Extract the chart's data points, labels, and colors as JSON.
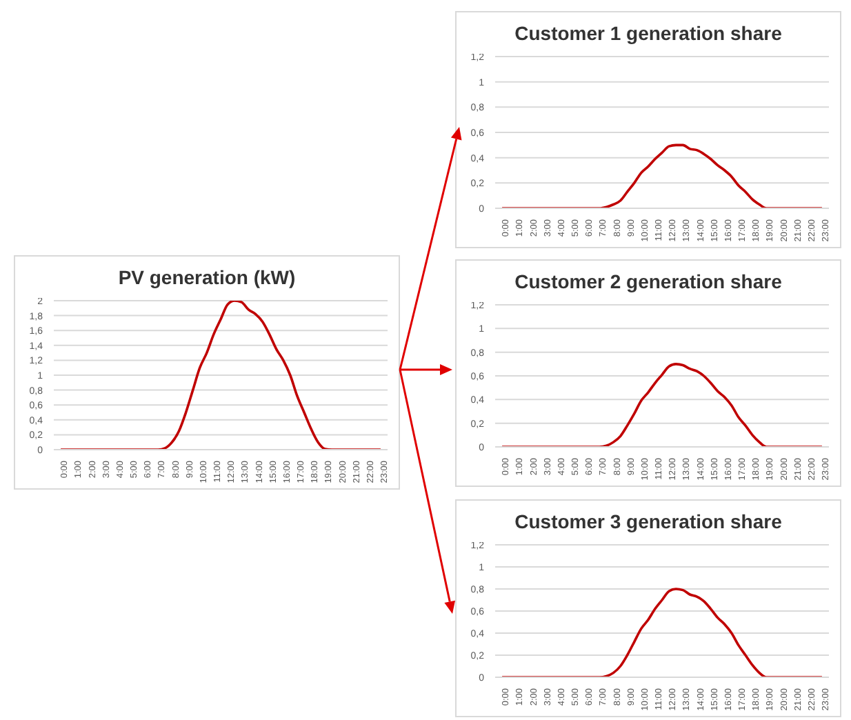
{
  "chart_data": [
    {
      "type": "line",
      "title": "PV generation (kW)",
      "color": "#c00000",
      "grid": "y",
      "xlim": [
        -0.5,
        23.5
      ],
      "ylim": [
        0,
        2
      ],
      "xticks": [
        {
          "value": 0,
          "label": "0:00"
        },
        {
          "value": 1,
          "label": "1:00"
        },
        {
          "value": 2,
          "label": "2:00"
        },
        {
          "value": 3,
          "label": "3:00"
        },
        {
          "value": 4,
          "label": "4:00"
        },
        {
          "value": 5,
          "label": "5:00"
        },
        {
          "value": 6,
          "label": "6:00"
        },
        {
          "value": 7,
          "label": "7:00"
        },
        {
          "value": 8,
          "label": "8:00"
        },
        {
          "value": 9,
          "label": "9:00"
        },
        {
          "value": 10,
          "label": "10:00"
        },
        {
          "value": 11,
          "label": "11:00"
        },
        {
          "value": 12,
          "label": "12:00"
        },
        {
          "value": 13,
          "label": "13:00"
        },
        {
          "value": 14,
          "label": "14:00"
        },
        {
          "value": 15,
          "label": "15:00"
        },
        {
          "value": 16,
          "label": "16:00"
        },
        {
          "value": 17,
          "label": "17:00"
        },
        {
          "value": 18,
          "label": "18:00"
        },
        {
          "value": 19,
          "label": "19:00"
        },
        {
          "value": 20,
          "label": "20:00"
        },
        {
          "value": 21,
          "label": "21:00"
        },
        {
          "value": 22,
          "label": "22:00"
        },
        {
          "value": 23,
          "label": "23:00"
        }
      ],
      "yticks": [
        0,
        {
          "value": 0.2,
          "label": "0,2"
        },
        {
          "value": 0.4,
          "label": "0,4"
        },
        {
          "value": 0.6,
          "label": "0,6"
        },
        {
          "value": 0.8,
          "label": "0,8"
        },
        1,
        {
          "value": 1.2,
          "label": "1,2"
        },
        {
          "value": 1.4,
          "label": "1,4"
        },
        {
          "value": 1.6,
          "label": "1,6"
        },
        {
          "value": 1.8,
          "label": "1,8"
        },
        2
      ],
      "x": [
        0,
        7,
        7.5,
        8,
        8.5,
        9,
        9.5,
        10,
        10.5,
        11,
        11.5,
        12,
        12.5,
        13,
        13.5,
        14,
        14.5,
        15,
        15.5,
        16,
        16.5,
        17,
        17.5,
        18,
        18.5,
        19,
        19.5,
        23
      ],
      "values": [
        0,
        0,
        0.02,
        0.1,
        0.25,
        0.5,
        0.8,
        1.1,
        1.3,
        1.55,
        1.75,
        1.95,
        2,
        1.98,
        1.88,
        1.82,
        1.72,
        1.55,
        1.35,
        1.2,
        1,
        0.72,
        0.5,
        0.28,
        0.1,
        0.01,
        0,
        0
      ]
    },
    {
      "type": "line",
      "title": "Customer 1 generation share",
      "color": "#c00000",
      "grid": "y",
      "xlim": [
        -0.5,
        23.5
      ],
      "ylim": [
        0,
        1.2
      ],
      "xticks": [
        {
          "value": 0,
          "label": "0:00"
        },
        {
          "value": 1,
          "label": "1:00"
        },
        {
          "value": 2,
          "label": "2:00"
        },
        {
          "value": 3,
          "label": "3:00"
        },
        {
          "value": 4,
          "label": "4:00"
        },
        {
          "value": 5,
          "label": "5:00"
        },
        {
          "value": 6,
          "label": "6:00"
        },
        {
          "value": 7,
          "label": "7:00"
        },
        {
          "value": 8,
          "label": "8:00"
        },
        {
          "value": 9,
          "label": "9:00"
        },
        {
          "value": 10,
          "label": "10:00"
        },
        {
          "value": 11,
          "label": "11:00"
        },
        {
          "value": 12,
          "label": "12:00"
        },
        {
          "value": 13,
          "label": "13:00"
        },
        {
          "value": 14,
          "label": "14:00"
        },
        {
          "value": 15,
          "label": "15:00"
        },
        {
          "value": 16,
          "label": "16:00"
        },
        {
          "value": 17,
          "label": "17:00"
        },
        {
          "value": 18,
          "label": "18:00"
        },
        {
          "value": 19,
          "label": "19:00"
        },
        {
          "value": 20,
          "label": "20:00"
        },
        {
          "value": 21,
          "label": "21:00"
        },
        {
          "value": 22,
          "label": "22:00"
        },
        {
          "value": 23,
          "label": "23:00"
        }
      ],
      "yticks": [
        0,
        {
          "value": 0.2,
          "label": "0,2"
        },
        {
          "value": 0.4,
          "label": "0,4"
        },
        {
          "value": 0.6,
          "label": "0,6"
        },
        {
          "value": 0.8,
          "label": "0,8"
        },
        1,
        {
          "value": 1.2,
          "label": "1,2"
        }
      ],
      "x": [
        0,
        7,
        7.5,
        8,
        8.5,
        9,
        9.5,
        10,
        10.5,
        11,
        11.5,
        12,
        12.5,
        13,
        13.5,
        14,
        14.5,
        15,
        15.5,
        16,
        16.5,
        17,
        17.5,
        18,
        18.5,
        19,
        19.5,
        23
      ],
      "values": [
        0,
        0,
        0.01,
        0.03,
        0.06,
        0.13,
        0.2,
        0.28,
        0.33,
        0.39,
        0.44,
        0.49,
        0.5,
        0.5,
        0.47,
        0.46,
        0.43,
        0.39,
        0.34,
        0.3,
        0.25,
        0.18,
        0.13,
        0.07,
        0.03,
        0,
        0,
        0
      ]
    },
    {
      "type": "line",
      "title": "Customer 2 generation share",
      "color": "#c00000",
      "grid": "y",
      "xlim": [
        -0.5,
        23.5
      ],
      "ylim": [
        0,
        1.2
      ],
      "xticks": [
        {
          "value": 0,
          "label": "0:00"
        },
        {
          "value": 1,
          "label": "1:00"
        },
        {
          "value": 2,
          "label": "2:00"
        },
        {
          "value": 3,
          "label": "3:00"
        },
        {
          "value": 4,
          "label": "4:00"
        },
        {
          "value": 5,
          "label": "5:00"
        },
        {
          "value": 6,
          "label": "6:00"
        },
        {
          "value": 7,
          "label": "7:00"
        },
        {
          "value": 8,
          "label": "8:00"
        },
        {
          "value": 9,
          "label": "9:00"
        },
        {
          "value": 10,
          "label": "10:00"
        },
        {
          "value": 11,
          "label": "11:00"
        },
        {
          "value": 12,
          "label": "12:00"
        },
        {
          "value": 13,
          "label": "13:00"
        },
        {
          "value": 14,
          "label": "14:00"
        },
        {
          "value": 15,
          "label": "15:00"
        },
        {
          "value": 16,
          "label": "16:00"
        },
        {
          "value": 17,
          "label": "17:00"
        },
        {
          "value": 18,
          "label": "18:00"
        },
        {
          "value": 19,
          "label": "19:00"
        },
        {
          "value": 20,
          "label": "20:00"
        },
        {
          "value": 21,
          "label": "21:00"
        },
        {
          "value": 22,
          "label": "22:00"
        },
        {
          "value": 23,
          "label": "23:00"
        }
      ],
      "yticks": [
        0,
        {
          "value": 0.2,
          "label": "0,2"
        },
        {
          "value": 0.4,
          "label": "0,4"
        },
        {
          "value": 0.6,
          "label": "0,6"
        },
        {
          "value": 0.8,
          "label": "0,8"
        },
        1,
        {
          "value": 1.2,
          "label": "1,2"
        }
      ],
      "x": [
        0,
        7,
        7.5,
        8,
        8.5,
        9,
        9.5,
        10,
        10.5,
        11,
        11.5,
        12,
        12.5,
        13,
        13.5,
        14,
        14.5,
        15,
        15.5,
        16,
        16.5,
        17,
        17.5,
        18,
        18.5,
        19,
        19.5,
        23
      ],
      "values": [
        0,
        0,
        0.01,
        0.04,
        0.09,
        0.18,
        0.28,
        0.39,
        0.46,
        0.54,
        0.61,
        0.68,
        0.7,
        0.69,
        0.66,
        0.64,
        0.6,
        0.54,
        0.47,
        0.42,
        0.35,
        0.25,
        0.18,
        0.1,
        0.04,
        0,
        0,
        0
      ]
    },
    {
      "type": "line",
      "title": "Customer 3 generation share",
      "color": "#c00000",
      "grid": "y",
      "xlim": [
        -0.5,
        23.5
      ],
      "ylim": [
        0,
        1.2
      ],
      "xticks": [
        {
          "value": 0,
          "label": "0:00"
        },
        {
          "value": 1,
          "label": "1:00"
        },
        {
          "value": 2,
          "label": "2:00"
        },
        {
          "value": 3,
          "label": "3:00"
        },
        {
          "value": 4,
          "label": "4:00"
        },
        {
          "value": 5,
          "label": "5:00"
        },
        {
          "value": 6,
          "label": "6:00"
        },
        {
          "value": 7,
          "label": "7:00"
        },
        {
          "value": 8,
          "label": "8:00"
        },
        {
          "value": 9,
          "label": "9:00"
        },
        {
          "value": 10,
          "label": "10:00"
        },
        {
          "value": 11,
          "label": "11:00"
        },
        {
          "value": 12,
          "label": "12:00"
        },
        {
          "value": 13,
          "label": "13:00"
        },
        {
          "value": 14,
          "label": "14:00"
        },
        {
          "value": 15,
          "label": "15:00"
        },
        {
          "value": 16,
          "label": "16:00"
        },
        {
          "value": 17,
          "label": "17:00"
        },
        {
          "value": 18,
          "label": "18:00"
        },
        {
          "value": 19,
          "label": "19:00"
        },
        {
          "value": 20,
          "label": "20:00"
        },
        {
          "value": 21,
          "label": "21:00"
        },
        {
          "value": 22,
          "label": "22:00"
        },
        {
          "value": 23,
          "label": "23:00"
        }
      ],
      "yticks": [
        0,
        {
          "value": 0.2,
          "label": "0,2"
        },
        {
          "value": 0.4,
          "label": "0,4"
        },
        {
          "value": 0.6,
          "label": "0,6"
        },
        {
          "value": 0.8,
          "label": "0,8"
        },
        1,
        {
          "value": 1.2,
          "label": "1,2"
        }
      ],
      "x": [
        0,
        7,
        7.5,
        8,
        8.5,
        9,
        9.5,
        10,
        10.5,
        11,
        11.5,
        12,
        12.5,
        13,
        13.5,
        14,
        14.5,
        15,
        15.5,
        16,
        16.5,
        17,
        17.5,
        18,
        18.5,
        19,
        19.5,
        23
      ],
      "values": [
        0,
        0,
        0.01,
        0.04,
        0.1,
        0.2,
        0.32,
        0.44,
        0.52,
        0.62,
        0.7,
        0.78,
        0.8,
        0.79,
        0.75,
        0.73,
        0.69,
        0.62,
        0.54,
        0.48,
        0.4,
        0.29,
        0.2,
        0.11,
        0.04,
        0,
        0,
        0
      ]
    }
  ]
}
